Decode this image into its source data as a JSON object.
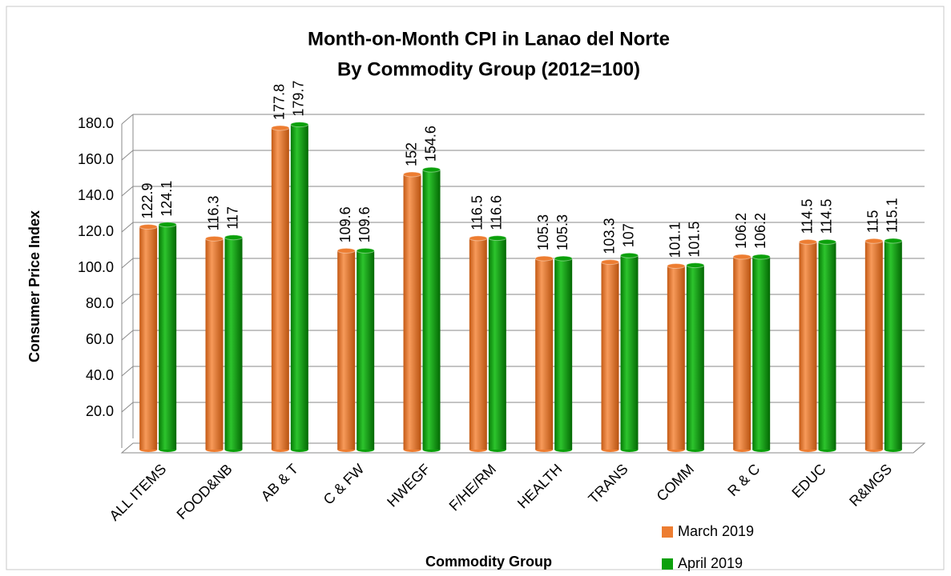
{
  "chart_data": {
    "type": "bar",
    "title": "Month-on-Month CPI in Lanao del Norte",
    "subtitle": "By Commodity Group (2012=100)",
    "x_label": "Commodity Group",
    "y_label": "Consumer Price Index",
    "categories": [
      "ALL ITEMS",
      "FOOD&NB",
      "AB & T",
      "C & FW",
      "HWEGF",
      "F/HE/RM",
      "HEALTH",
      "TRANS",
      "COMM",
      "R & C",
      "EDUC",
      "R&MGS"
    ],
    "series": [
      {
        "name": "March 2019",
        "color": "#ED7D31",
        "values": [
          122.9,
          116.3,
          177.8,
          109.6,
          152,
          116.5,
          105.3,
          103.3,
          101.1,
          106.2,
          114.5,
          115
        ]
      },
      {
        "name": "April 2019",
        "color": "#0BA00B",
        "values": [
          124.1,
          117,
          179.7,
          109.6,
          154.6,
          116.6,
          105.3,
          107,
          101.5,
          106.2,
          114.5,
          115.1
        ]
      }
    ],
    "ylim": [
      0,
      180
    ],
    "yticks": [
      {
        "value": 20,
        "label": "20.0"
      },
      {
        "value": 40,
        "label": "40.0"
      },
      {
        "value": 60,
        "label": "60.0"
      },
      {
        "value": 80,
        "label": "80.0"
      },
      {
        "value": 100,
        "label": "100.0"
      },
      {
        "value": 120,
        "label": "120.0"
      },
      {
        "value": 140,
        "label": "140.0"
      },
      {
        "value": 160,
        "label": "160.0"
      },
      {
        "value": 180,
        "label": "180.0"
      }
    ],
    "grid": true,
    "legend": "bottom-right"
  }
}
